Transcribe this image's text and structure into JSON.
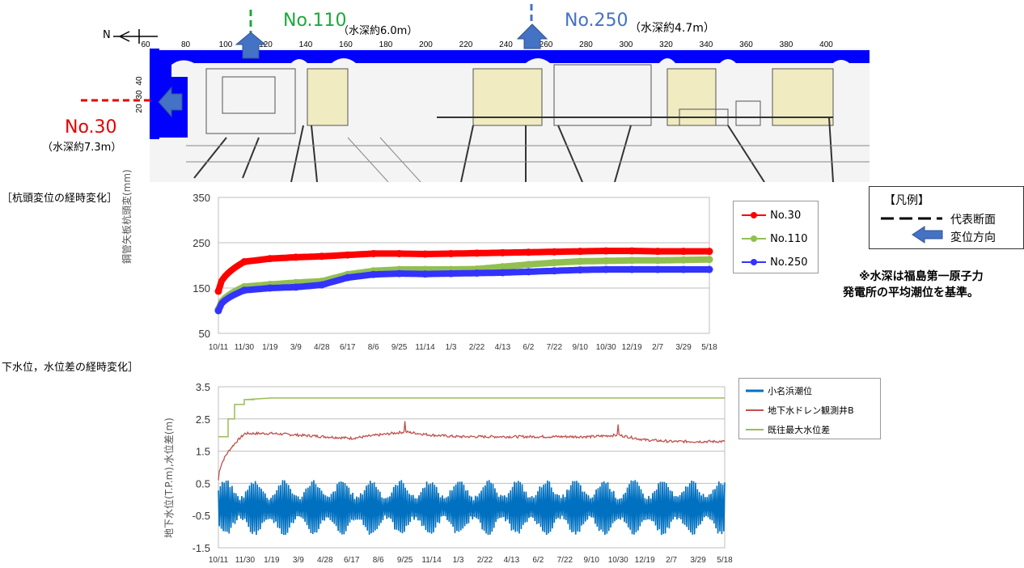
{
  "plan": {
    "north_label": "N",
    "scale_ticks": [
      "60",
      "80",
      "100",
      "120",
      "140",
      "160",
      "180",
      "200",
      "220",
      "240",
      "260",
      "280",
      "300",
      "320",
      "340",
      "360",
      "380",
      "400"
    ],
    "left_ticks": [
      "40",
      "30",
      "20"
    ],
    "sections": [
      {
        "id": "No.30",
        "label": "No.30",
        "depth": "（水深約7.3m）",
        "color": "#e60000"
      },
      {
        "id": "No.110",
        "label": "No.110",
        "depth": "（水深約6.0m）",
        "color": "#1ea83c"
      },
      {
        "id": "No.250",
        "label": "No.250",
        "depth": "（水深約4.7m）",
        "color": "#4472c4"
      }
    ]
  },
  "section1_title": "［杭頭変位の経時変化］",
  "section2_title": "下水位，水位差の経時変化］",
  "legend_box": {
    "title": "【凡例】",
    "line_label": "代表断面",
    "arrow_label": "変位方向"
  },
  "note_line1": "※水深は福島第一原子力",
  "note_line2": "発電所の平均潮位を基準。",
  "colors": {
    "red": "#ff0000",
    "green": "#92c050",
    "blue": "#3333ff",
    "tide": "#0070c0",
    "drain": "#c0504d",
    "maxdiff": "#9bbb59",
    "seawall": "#0000ff"
  },
  "chart_data": [
    {
      "type": "line",
      "ylabel": "鋼管矢板杭頭変(mm)",
      "ylim": [
        50,
        350
      ],
      "yticks": [
        "350",
        "250",
        "150",
        "50"
      ],
      "categories": [
        "10/11",
        "11/30",
        "1/19",
        "3/9",
        "4/28",
        "6/17",
        "8/6",
        "9/25",
        "11/14",
        "1/3",
        "2/22",
        "4/13",
        "6/2",
        "7/22",
        "9/10",
        "10/30",
        "12/19",
        "2/7",
        "3/29",
        "5/18"
      ],
      "series": [
        {
          "name": "No.30",
          "values": [
            143,
            208,
            215,
            218,
            220,
            223,
            226,
            226,
            225,
            226,
            227,
            228,
            229,
            230,
            231,
            232,
            232,
            231,
            231,
            231
          ]
        },
        {
          "name": "No.110",
          "values": [
            103,
            153,
            158,
            162,
            165,
            180,
            188,
            191,
            191,
            191,
            192,
            197,
            202,
            206,
            209,
            210,
            211,
            211,
            212,
            213
          ]
        },
        {
          "name": "No.250",
          "values": [
            100,
            145,
            150,
            152,
            157,
            173,
            180,
            182,
            181,
            182,
            183,
            184,
            186,
            188,
            190,
            191,
            191,
            191,
            191,
            191
          ]
        }
      ],
      "legend": "right"
    },
    {
      "type": "line",
      "ylabel": "地下水位(T.P.m),水位差(m)",
      "ylim": [
        -1.5,
        3.5
      ],
      "yticks": [
        "3.5",
        "2.5",
        "1.5",
        "0.5",
        "-0.5",
        "-1.5"
      ],
      "categories": [
        "10/11",
        "11/30",
        "1/19",
        "3/9",
        "4/28",
        "6/17",
        "8/6",
        "9/25",
        "11/14",
        "1/3",
        "2/22",
        "4/13",
        "6/2",
        "7/22",
        "9/10",
        "10/30",
        "12/19",
        "2/7",
        "3/29",
        "5/18"
      ],
      "series": [
        {
          "name": "小名浜潮位",
          "values": [
            -0.2,
            -0.2,
            -0.2,
            -0.2,
            -0.2,
            -0.2,
            -0.2,
            -0.2,
            -0.2,
            -0.2,
            -0.2,
            -0.2,
            -0.2,
            -0.2,
            -0.2,
            -0.2,
            -0.2,
            -0.2,
            -0.2,
            -0.2
          ],
          "range": [
            -1.1,
            0.6
          ]
        },
        {
          "name": "地下水ドレン観測井B",
          "values": [
            0.6,
            2.05,
            2.05,
            2.0,
            1.95,
            1.9,
            2.0,
            2.1,
            2.0,
            1.95,
            1.95,
            1.95,
            1.95,
            1.95,
            1.95,
            2.0,
            1.85,
            1.8,
            1.8,
            1.8
          ]
        },
        {
          "name": "既往最大水位差",
          "values": [
            1.95,
            3.1,
            3.15,
            3.15,
            3.15,
            3.15,
            3.15,
            3.15,
            3.15,
            3.15,
            3.15,
            3.15,
            3.15,
            3.15,
            3.15,
            3.15,
            3.15,
            3.15,
            3.15,
            3.15
          ]
        }
      ],
      "legend": "right"
    }
  ]
}
